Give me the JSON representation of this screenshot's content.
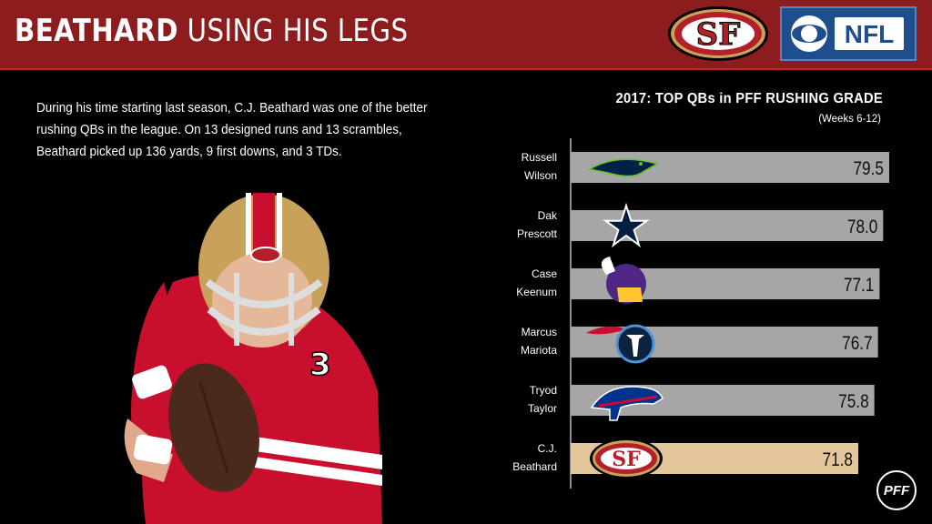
{
  "header": {
    "title_bold": "BEATHARD",
    "title_rest": " USING HIS LEGS",
    "logo_left": "SF",
    "logo_right": "NFL",
    "brand_color": "#8c1c1d"
  },
  "description": "During his time starting last season, C.J. Beathard was one of the better rushing QBs in the league. On 13 designed runs and 13 scrambles, Beathard picked up 136 yards, 9 first downs, and 3 TDs.",
  "player": {
    "jersey_number": "3"
  },
  "chart_data": {
    "type": "bar",
    "orientation": "horizontal",
    "title": "2017: TOP QBs in PFF RUSHING GRADE",
    "subtitle": "(Weeks 6-12)",
    "categories": [
      "Russell Wilson",
      "Dak Prescott",
      "Case Keenum",
      "Marcus Mariota",
      "Tryod Taylor",
      "C.J. Beathard"
    ],
    "name_lines": [
      [
        "Russell",
        "Wilson"
      ],
      [
        "Dak",
        "Prescott"
      ],
      [
        "Case",
        "Keenum"
      ],
      [
        "Marcus",
        "Mariota"
      ],
      [
        "Tryod",
        "Taylor"
      ],
      [
        "C.J.",
        "Beathard"
      ]
    ],
    "teams": [
      "seahawks-icon",
      "cowboys-icon",
      "vikings-icon",
      "titans-icon",
      "bills-icon",
      "49ers-icon"
    ],
    "values": [
      79.5,
      78.0,
      77.1,
      76.7,
      75.8,
      71.8
    ],
    "labels": [
      "79.5",
      "78.0",
      "77.1",
      "76.7",
      "75.8",
      "71.8"
    ],
    "bar_color": "#a6a6a6",
    "highlight_color": "#e3c699",
    "highlight_index": 5
  },
  "footer": {
    "watermark": "PFF"
  }
}
